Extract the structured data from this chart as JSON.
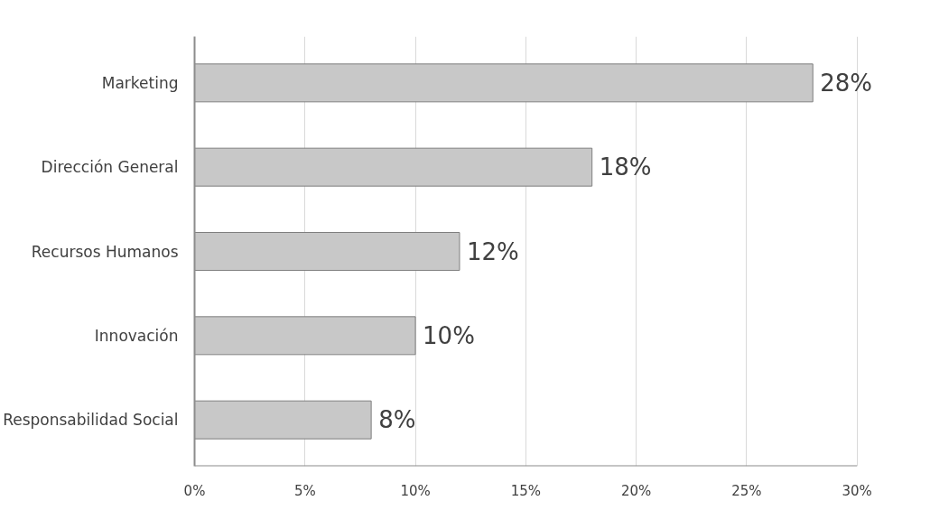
{
  "chart_data": {
    "type": "bar",
    "orientation": "horizontal",
    "categories": [
      "Marketing",
      "Dirección General",
      "Recursos Humanos",
      "Innovación",
      "Responsabilidad Social"
    ],
    "values": [
      28,
      18,
      12,
      10,
      8
    ],
    "color": "#c8c8c8",
    "value_labels": [
      "28%",
      "18%",
      "12%",
      "10%",
      "8%"
    ],
    "xlim": [
      0,
      30
    ],
    "xticks": [
      {
        "value": 0,
        "label": "0%"
      },
      {
        "value": 5,
        "label": "5%"
      },
      {
        "value": 10,
        "label": "10%"
      },
      {
        "value": 15,
        "label": "15%"
      },
      {
        "value": 20,
        "label": "20%"
      },
      {
        "value": 25,
        "label": "25%"
      },
      {
        "value": 30,
        "label": "30%"
      }
    ],
    "grid": "x"
  }
}
